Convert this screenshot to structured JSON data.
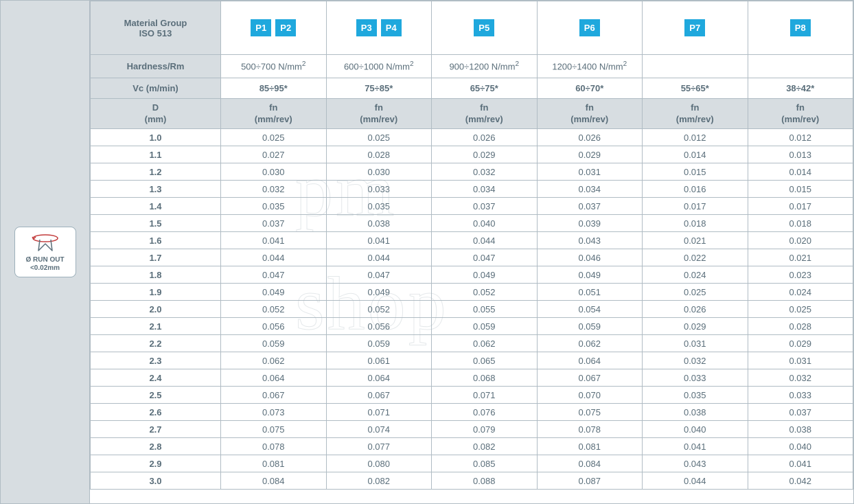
{
  "sidebar": {
    "badge_line1": "Ø RUN OUT",
    "badge_line2": "<0.02mm"
  },
  "header": {
    "material_group_l1": "Material Group",
    "material_group_l2": "ISO 513",
    "hardness_label": "Hardness/Rm",
    "vc_label": "Vc (m/min)",
    "d_label_l1": "D",
    "d_label_l2": "(mm)",
    "fn_label_l1": "fn",
    "fn_label_l2": "(mm/rev)",
    "groups": [
      {
        "chips": [
          "P1",
          "P2"
        ],
        "hardness": "500÷700 N/mm",
        "vc": "85÷95*"
      },
      {
        "chips": [
          "P3",
          "P4"
        ],
        "hardness": "600÷1000 N/mm",
        "vc": "75÷85*"
      },
      {
        "chips": [
          "P5"
        ],
        "hardness": "900÷1200 N/mm",
        "vc": "65÷75*"
      },
      {
        "chips": [
          "P6"
        ],
        "hardness": "1200÷1400 N/mm",
        "vc": "60÷70*"
      },
      {
        "chips": [
          "P7"
        ],
        "hardness": "",
        "vc": "55÷65*"
      },
      {
        "chips": [
          "P8"
        ],
        "hardness": "",
        "vc": "38÷42*"
      }
    ]
  },
  "rows": [
    {
      "d": "1.0",
      "v": [
        "0.025",
        "0.025",
        "0.026",
        "0.026",
        "0.012",
        "0.012"
      ]
    },
    {
      "d": "1.1",
      "v": [
        "0.027",
        "0.028",
        "0.029",
        "0.029",
        "0.014",
        "0.013"
      ]
    },
    {
      "d": "1.2",
      "v": [
        "0.030",
        "0.030",
        "0.032",
        "0.031",
        "0.015",
        "0.014"
      ]
    },
    {
      "d": "1.3",
      "v": [
        "0.032",
        "0.033",
        "0.034",
        "0.034",
        "0.016",
        "0.015"
      ]
    },
    {
      "d": "1.4",
      "v": [
        "0.035",
        "0.035",
        "0.037",
        "0.037",
        "0.017",
        "0.017"
      ]
    },
    {
      "d": "1.5",
      "v": [
        "0.037",
        "0.038",
        "0.040",
        "0.039",
        "0.018",
        "0.018"
      ]
    },
    {
      "d": "1.6",
      "v": [
        "0.041",
        "0.041",
        "0.044",
        "0.043",
        "0.021",
        "0.020"
      ]
    },
    {
      "d": "1.7",
      "v": [
        "0.044",
        "0.044",
        "0.047",
        "0.046",
        "0.022",
        "0.021"
      ]
    },
    {
      "d": "1.8",
      "v": [
        "0.047",
        "0.047",
        "0.049",
        "0.049",
        "0.024",
        "0.023"
      ]
    },
    {
      "d": "1.9",
      "v": [
        "0.049",
        "0.049",
        "0.052",
        "0.051",
        "0.025",
        "0.024"
      ]
    },
    {
      "d": "2.0",
      "v": [
        "0.052",
        "0.052",
        "0.055",
        "0.054",
        "0.026",
        "0.025"
      ]
    },
    {
      "d": "2.1",
      "v": [
        "0.056",
        "0.056",
        "0.059",
        "0.059",
        "0.029",
        "0.028"
      ]
    },
    {
      "d": "2.2",
      "v": [
        "0.059",
        "0.059",
        "0.062",
        "0.062",
        "0.031",
        "0.029"
      ]
    },
    {
      "d": "2.3",
      "v": [
        "0.062",
        "0.061",
        "0.065",
        "0.064",
        "0.032",
        "0.031"
      ]
    },
    {
      "d": "2.4",
      "v": [
        "0.064",
        "0.064",
        "0.068",
        "0.067",
        "0.033",
        "0.032"
      ]
    },
    {
      "d": "2.5",
      "v": [
        "0.067",
        "0.067",
        "0.071",
        "0.070",
        "0.035",
        "0.033"
      ]
    },
    {
      "d": "2.6",
      "v": [
        "0.073",
        "0.071",
        "0.076",
        "0.075",
        "0.038",
        "0.037"
      ]
    },
    {
      "d": "2.7",
      "v": [
        "0.075",
        "0.074",
        "0.079",
        "0.078",
        "0.040",
        "0.038"
      ]
    },
    {
      "d": "2.8",
      "v": [
        "0.078",
        "0.077",
        "0.082",
        "0.081",
        "0.041",
        "0.040"
      ]
    },
    {
      "d": "2.9",
      "v": [
        "0.081",
        "0.080",
        "0.085",
        "0.084",
        "0.043",
        "0.041"
      ]
    },
    {
      "d": "3.0",
      "v": [
        "0.084",
        "0.082",
        "0.088",
        "0.087",
        "0.044",
        "0.042"
      ]
    }
  ],
  "colors": {
    "chip_bg": "#1fa8dd",
    "grey_bg": "#d7dde1",
    "border": "#b0bcc4",
    "text": "#5a6e7a"
  },
  "watermark": {
    "line1": "pm",
    "line2": "shop"
  }
}
